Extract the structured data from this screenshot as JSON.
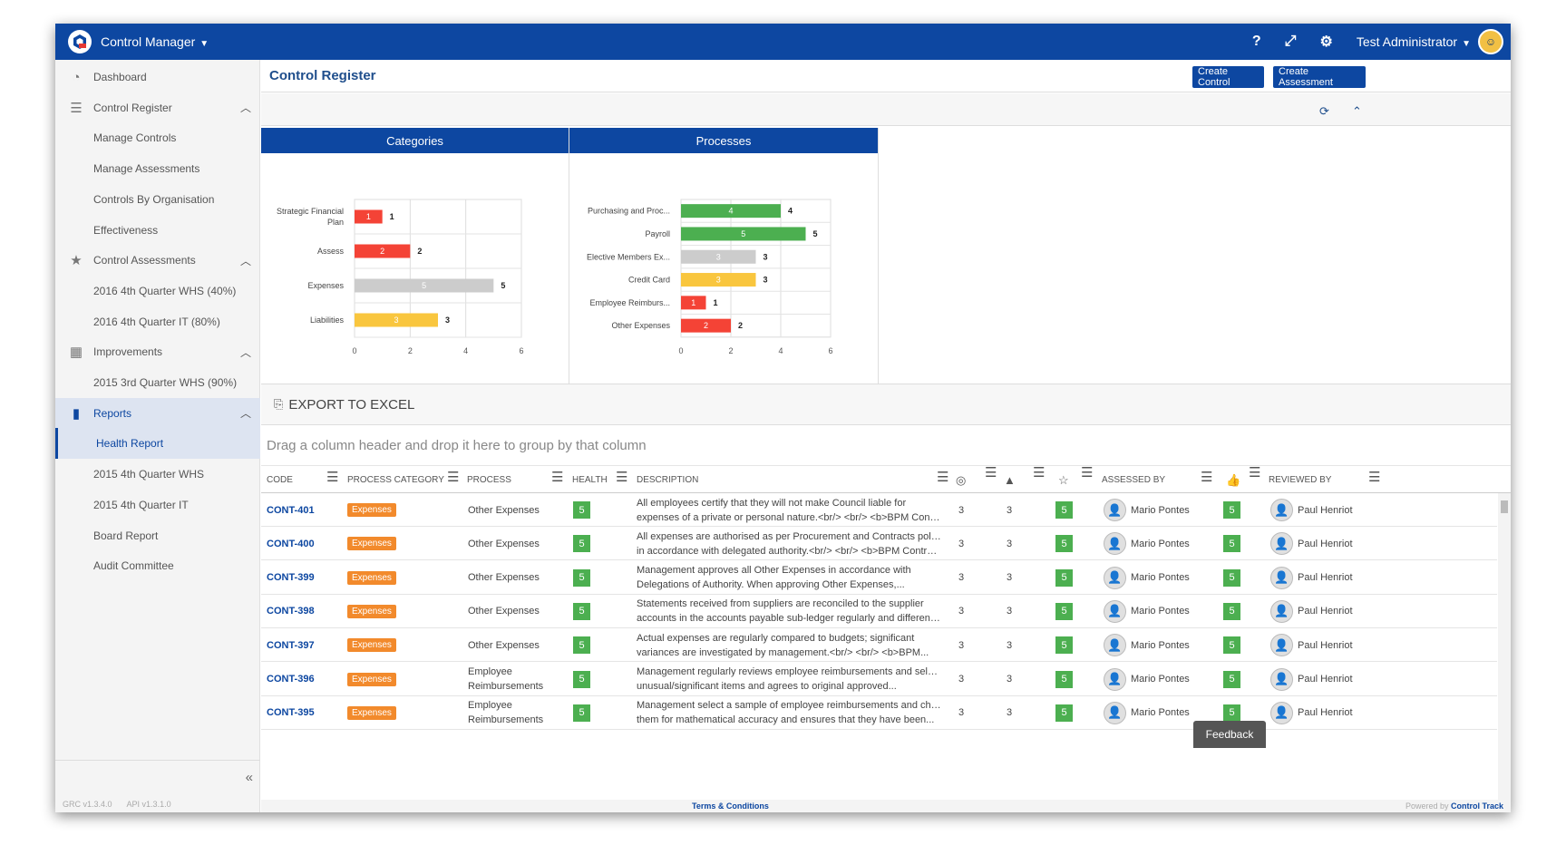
{
  "app": {
    "name": "Control Manager",
    "user": "Test Administrator"
  },
  "colors": {
    "brand": "#0d47a1",
    "red": "#f44336",
    "green": "#4caf50",
    "yellow": "#f9c63e",
    "grey": "#cccccc",
    "orange": "#f28a2c"
  },
  "topbar_icons": [
    "help-icon",
    "expand-icon",
    "gear-icon"
  ],
  "sidebar": {
    "items": [
      {
        "label": "Dashboard",
        "icon": "dashboard-icon",
        "type": "top"
      },
      {
        "label": "Control Register",
        "icon": "list-icon",
        "type": "top",
        "expanded": true
      },
      {
        "label": "Manage Controls",
        "type": "sub"
      },
      {
        "label": "Manage Assessments",
        "type": "sub"
      },
      {
        "label": "Controls By Organisation",
        "type": "sub"
      },
      {
        "label": "Effectiveness",
        "type": "sub"
      },
      {
        "label": "Control Assessments",
        "icon": "star-icon",
        "type": "top",
        "expanded": true
      },
      {
        "label": "2016 4th Quarter WHS (40%)",
        "type": "sub"
      },
      {
        "label": "2016 4th Quarter IT (80%)",
        "type": "sub"
      },
      {
        "label": "Improvements",
        "icon": "calendar-icon",
        "type": "top",
        "expanded": true
      },
      {
        "label": "2015 3rd Quarter WHS (90%)",
        "type": "sub"
      },
      {
        "label": "Reports",
        "icon": "bar-chart-icon",
        "type": "top",
        "expanded": true
      },
      {
        "label": "Health Report",
        "type": "sub",
        "active": true
      },
      {
        "label": "2015 4th Quarter WHS",
        "type": "sub"
      },
      {
        "label": "2015 4th Quarter IT",
        "type": "sub"
      },
      {
        "label": "Board Report",
        "type": "sub"
      },
      {
        "label": "Audit Committee",
        "type": "sub"
      }
    ],
    "versions": {
      "grc": "GRC v1.3.4.0",
      "api": "API v1.3.1.0"
    }
  },
  "page": {
    "title": "Control Register",
    "create_control": "Create Control",
    "create_assessment": "Create Assessment",
    "export_label": "EXPORT TO EXCEL",
    "group_hint": "Drag a column header and drop it here to group by that column"
  },
  "chart_data": [
    {
      "type": "bar",
      "orientation": "horizontal",
      "title": "Categories",
      "categories": [
        "Strategic Financial Plan",
        "Assess",
        "Expenses",
        "Liabilities"
      ],
      "display_labels": [
        [
          "Strategic Financial",
          "Plan"
        ],
        [
          "Assess"
        ],
        [
          "Expenses"
        ],
        [
          "Liabilities"
        ]
      ],
      "values": [
        1,
        2,
        5,
        3
      ],
      "colors": [
        "#f44336",
        "#f44336",
        "#cccccc",
        "#f9c63e"
      ],
      "xlim": [
        0,
        6
      ],
      "ticks": [
        0,
        2,
        4,
        6
      ],
      "grid": true
    },
    {
      "type": "bar",
      "orientation": "horizontal",
      "title": "Processes",
      "categories": [
        "Purchasing and Proc...",
        "Payroll",
        "Elective Members Ex...",
        "Credit Card",
        "Employee Reimburs...",
        "Other Expenses"
      ],
      "display_labels": [
        [
          "Purchasing and Proc..."
        ],
        [
          "Payroll"
        ],
        [
          "Elective Members Ex..."
        ],
        [
          "Credit Card"
        ],
        [
          "Employee Reimburs..."
        ],
        [
          "Other Expenses"
        ]
      ],
      "values": [
        4,
        5,
        3,
        3,
        1,
        2
      ],
      "colors": [
        "#4caf50",
        "#4caf50",
        "#cccccc",
        "#f9c63e",
        "#f44336",
        "#f44336"
      ],
      "xlim": [
        0,
        6
      ],
      "ticks": [
        0,
        2,
        4,
        6
      ],
      "grid": true
    }
  ],
  "grid": {
    "columns": {
      "code": "CODE",
      "process_category": "PROCESS CATEGORY",
      "process": "PROCESS",
      "health": "HEALTH",
      "description": "DESCRIPTION",
      "assessed_by": "ASSESSED BY",
      "reviewed_by": "REVIEWED BY"
    },
    "rows": [
      {
        "code": "CONT-401",
        "category": "Expenses",
        "process": [
          "Other Expenses"
        ],
        "health": "5",
        "desc": [
          "All employees certify that they will not make Council liable for",
          "expenses of a private or personal nature.<br/> <br/> <b>BPM Contro..."
        ],
        "c1": "3",
        "c2": "3",
        "c3": "5",
        "assessed": "Mario Pontes",
        "c4": "5",
        "reviewed": "Paul Henriot"
      },
      {
        "code": "CONT-400",
        "category": "Expenses",
        "process": [
          "Other Expenses"
        ],
        "health": "5",
        "desc": [
          "All expenses are authorised as per Procurement and Contracts policy",
          "in accordance with delegated authority.<br/> <br/> <b>BPM Control..."
        ],
        "c1": "3",
        "c2": "3",
        "c3": "5",
        "assessed": "Mario Pontes",
        "c4": "5",
        "reviewed": "Paul Henriot"
      },
      {
        "code": "CONT-399",
        "category": "Expenses",
        "process": [
          "Other Expenses"
        ],
        "health": "5",
        "desc": [
          "Management approves all Other Expenses in accordance with",
          "Delegations of Authority. When approving Other Expenses,..."
        ],
        "c1": "3",
        "c2": "3",
        "c3": "5",
        "assessed": "Mario Pontes",
        "c4": "5",
        "reviewed": "Paul Henriot"
      },
      {
        "code": "CONT-398",
        "category": "Expenses",
        "process": [
          "Other Expenses"
        ],
        "health": "5",
        "desc": [
          "Statements received from suppliers are reconciled to the supplier",
          "accounts in the accounts payable sub-ledger regularly and difference..."
        ],
        "c1": "3",
        "c2": "3",
        "c3": "5",
        "assessed": "Mario Pontes",
        "c4": "5",
        "reviewed": "Paul Henriot"
      },
      {
        "code": "CONT-397",
        "category": "Expenses",
        "process": [
          "Other Expenses"
        ],
        "health": "5",
        "desc": [
          "Actual expenses are regularly compared to budgets; significant",
          "variances are investigated by management.<br/> <br/> <b>BPM..."
        ],
        "c1": "3",
        "c2": "3",
        "c3": "5",
        "assessed": "Mario Pontes",
        "c4": "5",
        "reviewed": "Paul Henriot"
      },
      {
        "code": "CONT-396",
        "category": "Expenses",
        "process": [
          "Employee",
          "Reimbursements"
        ],
        "health": "5",
        "desc": [
          "Management regularly reviews employee reimbursements and selects",
          "unusual/significant items and agrees to original approved..."
        ],
        "c1": "3",
        "c2": "3",
        "c3": "5",
        "assessed": "Mario Pontes",
        "c4": "5",
        "reviewed": "Paul Henriot"
      },
      {
        "code": "CONT-395",
        "category": "Expenses",
        "process": [
          "Employee",
          "Reimbursements"
        ],
        "health": "5",
        "desc": [
          "Management select a sample of employee reimbursements and check",
          "them for mathematical accuracy and ensures that they have been..."
        ],
        "c1": "3",
        "c2": "3",
        "c3": "5",
        "assessed": "Mario Pontes",
        "c4": "5",
        "reviewed": "Paul Henriot"
      }
    ]
  },
  "footer": {
    "terms": "Terms & Conditions",
    "powered_prefix": "Powered by",
    "powered_brand": "Control Track",
    "feedback": "Feedback"
  }
}
